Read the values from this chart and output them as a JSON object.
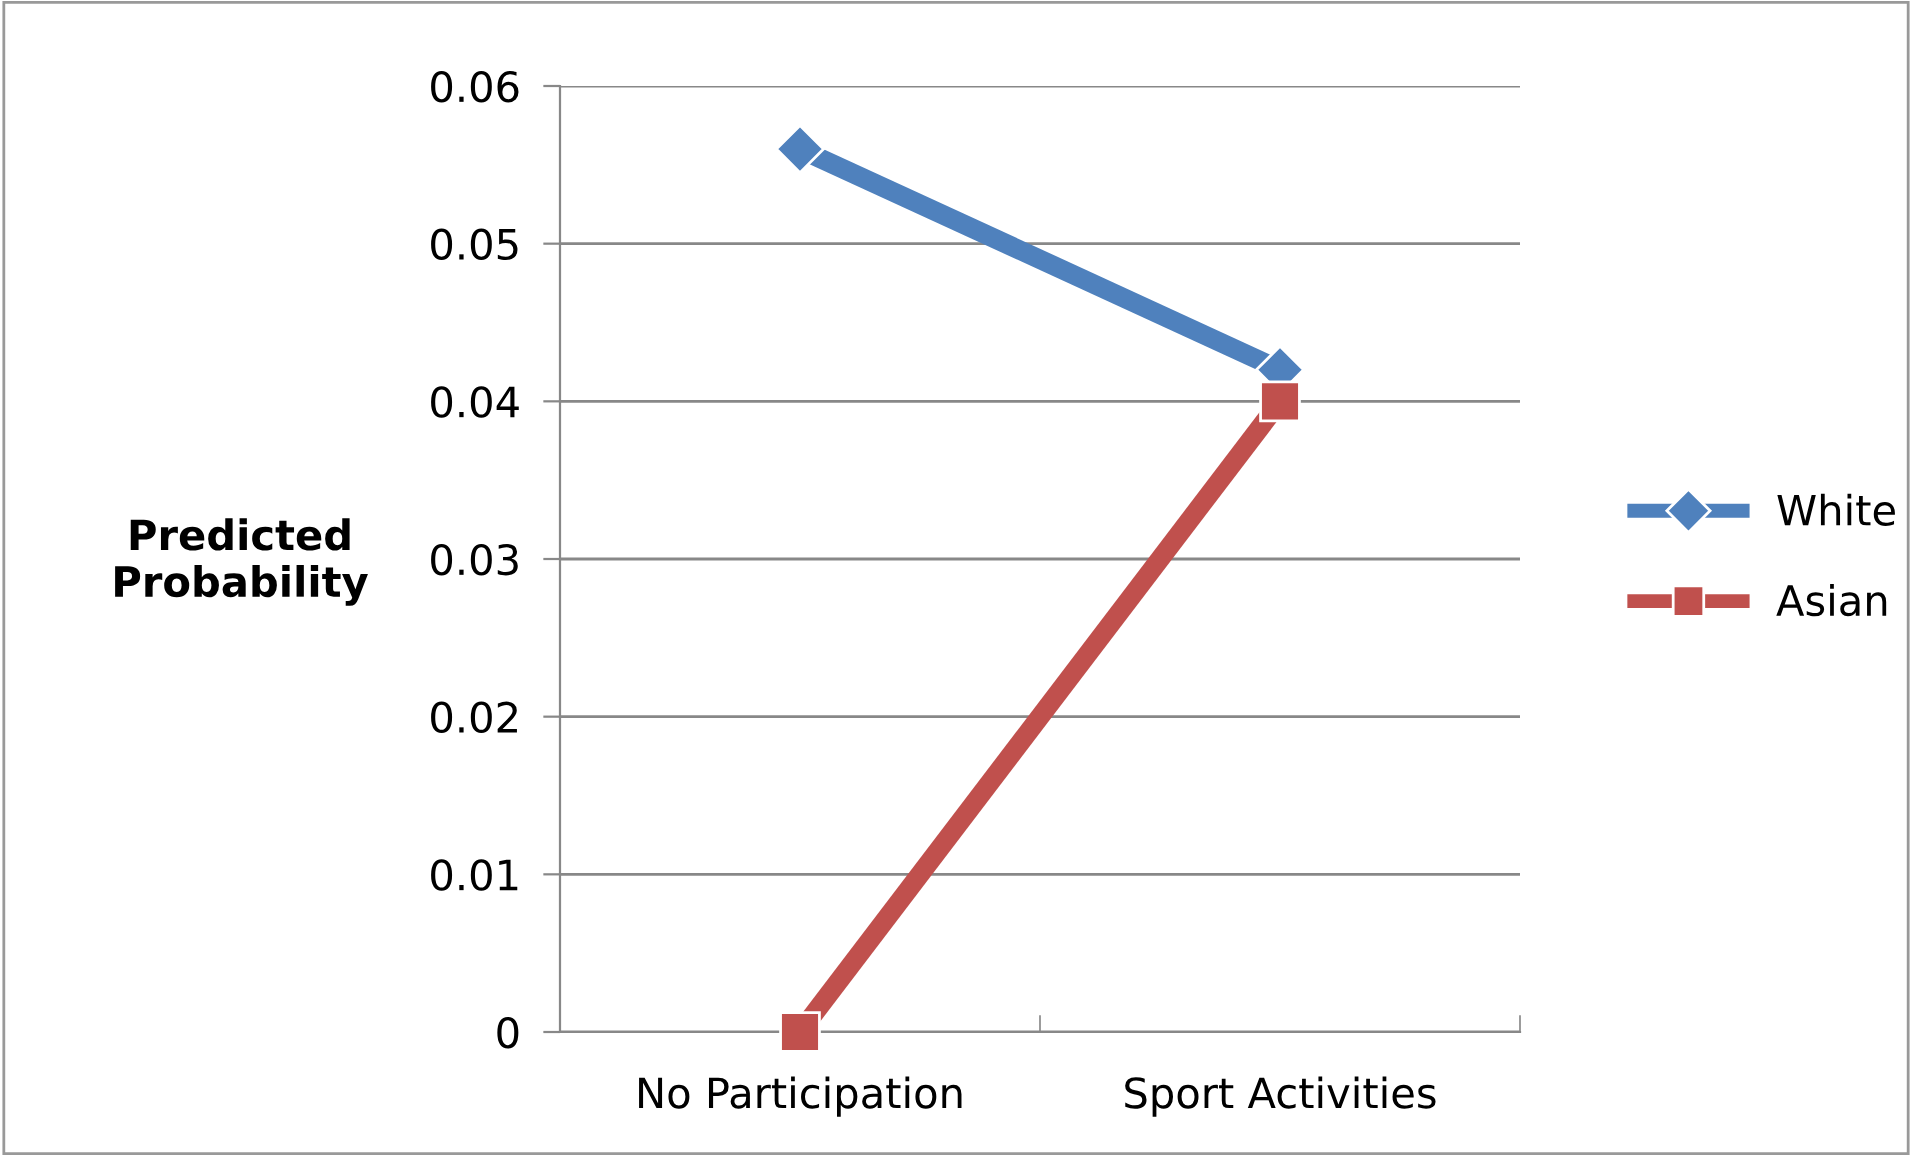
{
  "chart_data": {
    "type": "line",
    "ylabel": "Predicted\nProbability",
    "categories": [
      "No Participation",
      "Sport Activities"
    ],
    "series": [
      {
        "name": "White",
        "color": "#4f81bd",
        "values": [
          0.056,
          0.042
        ],
        "marker": "diamond"
      },
      {
        "name": "Asian",
        "color": "#c0504d",
        "values": [
          0,
          0.04
        ],
        "marker": "square"
      }
    ],
    "ylim": [
      0,
      0.06
    ],
    "yticks": [
      0,
      0.01,
      0.02,
      0.03,
      0.04,
      0.05,
      0.06
    ],
    "grid": "y",
    "legend": "right"
  }
}
